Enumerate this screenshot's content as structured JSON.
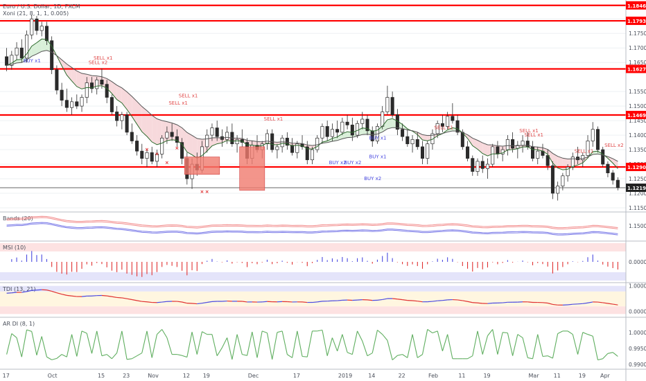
{
  "header": {
    "symbol_title": "Euro / U.S. Dollar, 1D, FXCM",
    "indicator_title": "Xoni (21, 8, 1, 1, 0.005)"
  },
  "colors": {
    "level_line": "#ff0000",
    "up_candle": "#ffffff",
    "down_candle": "#2b2b2b",
    "ema_fast": "#2e6b2e",
    "ema_slow": "#555555",
    "cloud_bull": "#d9efd9",
    "cloud_bear": "#f7d9dc",
    "buy_text": "#4a4ae0",
    "sell_text": "#e04a4a",
    "x_mark": "#e03030",
    "box_fill": "#f07a6e",
    "band_red": "#f28b8b",
    "band_blue": "#7b7be8",
    "hist_pos": "#4a4ae0",
    "hist_neg": "#e03030",
    "tdi_fill_top": "#e4e4fa",
    "tdi_fill_mid": "#fff6e0",
    "tdi_fill_bot": "#fde2e2",
    "ardi_green": "#5fae5f",
    "ardi_red": "#e03030",
    "ardi_blue": "#4a4ae0"
  },
  "chart_data": [
    {
      "type": "candlestick",
      "panel": "price",
      "title": "Euro / U.S. Dollar, 1D, FXCM",
      "ylim": [
        1.1138,
        1.1865
      ],
      "yticks": [
        "1.18000",
        "1.17500",
        "1.17000",
        "1.16500",
        "1.15500",
        "1.15000",
        "1.14500",
        "1.14000",
        "1.13500",
        "1.13000",
        "1.12500",
        "1.12000",
        "1.11500"
      ],
      "xticks": [
        {
          "label": "17",
          "index": 0
        },
        {
          "label": "Oct",
          "index": 10
        },
        {
          "label": "15",
          "index": 20
        },
        {
          "label": "23",
          "index": 26
        },
        {
          "label": "Nov",
          "index": 31
        },
        {
          "label": "12",
          "index": 38
        },
        {
          "label": "19",
          "index": 43
        },
        {
          "label": "Dec",
          "index": 52
        },
        {
          "label": "17",
          "index": 62
        },
        {
          "label": "2019",
          "index": 71
        },
        {
          "label": "14",
          "index": 78
        },
        {
          "label": "22",
          "index": 84
        },
        {
          "label": "Feb",
          "index": 90
        },
        {
          "label": "11",
          "index": 97
        },
        {
          "label": "19",
          "index": 102
        },
        {
          "label": "Mar",
          "index": 112
        },
        {
          "label": "11",
          "index": 117
        },
        {
          "label": "19",
          "index": 122
        },
        {
          "label": "Apr",
          "index": 130
        }
      ],
      "levels": [
        {
          "value": 1.18465,
          "label": "1.18465"
        },
        {
          "value": 1.17934,
          "label": "1.17934"
        },
        {
          "value": 1.16279,
          "label": "1.16279"
        },
        {
          "value": 1.14693,
          "label": "1.14693"
        },
        {
          "value": 1.12906,
          "label": "1.12906"
        }
      ],
      "last_price": {
        "value": 1.12191,
        "label": "1.12191"
      },
      "candles": [
        [
          1.167,
          1.17,
          1.162,
          1.164
        ],
        [
          1.164,
          1.169,
          1.1625,
          1.1675
        ],
        [
          1.1675,
          1.172,
          1.166,
          1.17
        ],
        [
          1.17,
          1.173,
          1.165,
          1.1665
        ],
        [
          1.1665,
          1.176,
          1.165,
          1.1745
        ],
        [
          1.1745,
          1.1815,
          1.173,
          1.18
        ],
        [
          1.18,
          1.181,
          1.1745,
          1.176
        ],
        [
          1.176,
          1.179,
          1.174,
          1.1775
        ],
        [
          1.1775,
          1.179,
          1.171,
          1.1725
        ],
        [
          1.1725,
          1.174,
          1.161,
          1.1625
        ],
        [
          1.1625,
          1.164,
          1.154,
          1.1555
        ],
        [
          1.1555,
          1.158,
          1.15,
          1.152
        ],
        [
          1.152,
          1.156,
          1.148,
          1.1495
        ],
        [
          1.1495,
          1.153,
          1.147,
          1.1515
        ],
        [
          1.1515,
          1.154,
          1.149,
          1.15
        ],
        [
          1.15,
          1.154,
          1.148,
          1.153
        ],
        [
          1.153,
          1.16,
          1.151,
          1.158
        ],
        [
          1.158,
          1.16,
          1.1545,
          1.156
        ],
        [
          1.156,
          1.16,
          1.154,
          1.159
        ],
        [
          1.159,
          1.163,
          1.156,
          1.1575
        ],
        [
          1.1575,
          1.159,
          1.151,
          1.153
        ],
        [
          1.153,
          1.154,
          1.147,
          1.148
        ],
        [
          1.148,
          1.15,
          1.143,
          1.145
        ],
        [
          1.145,
          1.148,
          1.142,
          1.147
        ],
        [
          1.147,
          1.148,
          1.14,
          1.141
        ],
        [
          1.141,
          1.144,
          1.137,
          1.138
        ],
        [
          1.138,
          1.14,
          1.133,
          1.1345
        ],
        [
          1.1345,
          1.137,
          1.13,
          1.132
        ],
        [
          1.132,
          1.135,
          1.129,
          1.134
        ],
        [
          1.134,
          1.136,
          1.13,
          1.131
        ],
        [
          1.131,
          1.135,
          1.129,
          1.1335
        ],
        [
          1.1335,
          1.14,
          1.132,
          1.139
        ],
        [
          1.139,
          1.143,
          1.137,
          1.141
        ],
        [
          1.141,
          1.144,
          1.138,
          1.1395
        ],
        [
          1.1395,
          1.142,
          1.136,
          1.1375
        ],
        [
          1.1375,
          1.139,
          1.13,
          1.132
        ],
        [
          1.132,
          1.134,
          1.123,
          1.125
        ],
        [
          1.125,
          1.132,
          1.1215,
          1.13
        ],
        [
          1.13,
          1.134,
          1.126,
          1.128
        ],
        [
          1.128,
          1.138,
          1.127,
          1.136
        ],
        [
          1.136,
          1.142,
          1.134,
          1.14
        ],
        [
          1.14,
          1.144,
          1.138,
          1.1425
        ],
        [
          1.1425,
          1.145,
          1.138,
          1.1395
        ],
        [
          1.1395,
          1.142,
          1.136,
          1.1385
        ],
        [
          1.1385,
          1.143,
          1.137,
          1.141
        ],
        [
          1.141,
          1.144,
          1.136,
          1.137
        ],
        [
          1.137,
          1.14,
          1.134,
          1.1385
        ],
        [
          1.1385,
          1.142,
          1.136,
          1.1375
        ],
        [
          1.1375,
          1.139,
          1.13,
          1.132
        ],
        [
          1.132,
          1.138,
          1.13,
          1.1365
        ],
        [
          1.1365,
          1.14,
          1.134,
          1.135
        ],
        [
          1.135,
          1.138,
          1.132,
          1.137
        ],
        [
          1.137,
          1.142,
          1.135,
          1.1405
        ],
        [
          1.1405,
          1.142,
          1.134,
          1.135
        ],
        [
          1.135,
          1.137,
          1.132,
          1.136
        ],
        [
          1.136,
          1.14,
          1.134,
          1.139
        ],
        [
          1.139,
          1.141,
          1.135,
          1.1365
        ],
        [
          1.1365,
          1.139,
          1.133,
          1.134
        ],
        [
          1.134,
          1.138,
          1.132,
          1.137
        ],
        [
          1.137,
          1.14,
          1.135,
          1.136
        ],
        [
          1.136,
          1.138,
          1.13,
          1.1315
        ],
        [
          1.1315,
          1.136,
          1.13,
          1.135
        ],
        [
          1.135,
          1.14,
          1.134,
          1.139
        ],
        [
          1.139,
          1.144,
          1.137,
          1.143
        ],
        [
          1.143,
          1.145,
          1.138,
          1.1395
        ],
        [
          1.1395,
          1.144,
          1.138,
          1.142
        ],
        [
          1.142,
          1.145,
          1.139,
          1.141
        ],
        [
          1.141,
          1.146,
          1.14,
          1.1445
        ],
        [
          1.1445,
          1.147,
          1.142,
          1.1435
        ],
        [
          1.1435,
          1.146,
          1.138,
          1.14
        ],
        [
          1.14,
          1.145,
          1.139,
          1.144
        ],
        [
          1.144,
          1.148,
          1.142,
          1.1455
        ],
        [
          1.1455,
          1.147,
          1.14,
          1.1415
        ],
        [
          1.1415,
          1.143,
          1.136,
          1.138
        ],
        [
          1.138,
          1.144,
          1.137,
          1.143
        ],
        [
          1.143,
          1.15,
          1.142,
          1.148
        ],
        [
          1.148,
          1.157,
          1.147,
          1.153
        ],
        [
          1.153,
          1.155,
          1.146,
          1.147
        ],
        [
          1.147,
          1.149,
          1.14,
          1.142
        ],
        [
          1.142,
          1.144,
          1.138,
          1.1395
        ],
        [
          1.1395,
          1.142,
          1.136,
          1.137
        ],
        [
          1.137,
          1.14,
          1.134,
          1.1385
        ],
        [
          1.1385,
          1.141,
          1.135,
          1.136
        ],
        [
          1.136,
          1.138,
          1.13,
          1.132
        ],
        [
          1.132,
          1.138,
          1.13,
          1.137
        ],
        [
          1.137,
          1.142,
          1.135,
          1.1405
        ],
        [
          1.1405,
          1.145,
          1.139,
          1.144
        ],
        [
          1.144,
          1.147,
          1.141,
          1.143
        ],
        [
          1.143,
          1.148,
          1.142,
          1.1465
        ],
        [
          1.1465,
          1.151,
          1.144,
          1.145
        ],
        [
          1.145,
          1.147,
          1.14,
          1.141
        ],
        [
          1.141,
          1.142,
          1.135,
          1.136
        ],
        [
          1.136,
          1.138,
          1.131,
          1.132
        ],
        [
          1.132,
          1.133,
          1.126,
          1.1275
        ],
        [
          1.1275,
          1.132,
          1.126,
          1.131
        ],
        [
          1.131,
          1.133,
          1.127,
          1.1285
        ],
        [
          1.1285,
          1.132,
          1.125,
          1.13
        ],
        [
          1.13,
          1.137,
          1.129,
          1.136
        ],
        [
          1.136,
          1.138,
          1.132,
          1.1335
        ],
        [
          1.1335,
          1.136,
          1.131,
          1.135
        ],
        [
          1.135,
          1.14,
          1.133,
          1.1385
        ],
        [
          1.1385,
          1.141,
          1.134,
          1.1355
        ],
        [
          1.1355,
          1.138,
          1.132,
          1.1365
        ],
        [
          1.1365,
          1.14,
          1.134,
          1.138
        ],
        [
          1.138,
          1.141,
          1.135,
          1.136
        ],
        [
          1.136,
          1.138,
          1.131,
          1.132
        ],
        [
          1.132,
          1.136,
          1.13,
          1.1345
        ],
        [
          1.1345,
          1.137,
          1.132,
          1.133
        ],
        [
          1.133,
          1.135,
          1.128,
          1.1295
        ],
        [
          1.1295,
          1.131,
          1.118,
          1.12
        ],
        [
          1.12,
          1.124,
          1.1175,
          1.1225
        ],
        [
          1.1225,
          1.127,
          1.121,
          1.126
        ],
        [
          1.126,
          1.13,
          1.124,
          1.129
        ],
        [
          1.129,
          1.134,
          1.128,
          1.1325
        ],
        [
          1.1325,
          1.136,
          1.13,
          1.1315
        ],
        [
          1.1315,
          1.134,
          1.129,
          1.133
        ],
        [
          1.133,
          1.14,
          1.132,
          1.138
        ],
        [
          1.138,
          1.1445,
          1.136,
          1.142
        ],
        [
          1.142,
          1.143,
          1.134,
          1.135
        ],
        [
          1.135,
          1.136,
          1.129,
          1.13
        ],
        [
          1.13,
          1.131,
          1.1255,
          1.127
        ],
        [
          1.127,
          1.128,
          1.123,
          1.1245
        ],
        [
          1.1245,
          1.1255,
          1.121,
          1.1219
        ]
      ],
      "signals": [
        {
          "text": "BUY x1",
          "index": 6,
          "value": 1.165,
          "kind": "buy"
        },
        {
          "text": "SELL x1",
          "index": 24,
          "value": 1.166,
          "kind": "sell"
        },
        {
          "text": "SELL x2",
          "index": 22,
          "value": 1.1645,
          "kind": "sell"
        },
        {
          "text": "SELL x1",
          "index": 44,
          "value": 1.153,
          "kind": "sell"
        },
        {
          "text": "SELL x1",
          "index": 42,
          "value": 1.1505,
          "kind": "sell"
        },
        {
          "text": "SELL x1",
          "index": 66,
          "value": 1.145,
          "kind": "sell"
        },
        {
          "text": "BUY x2",
          "index": 81,
          "value": 1.13,
          "kind": "buy"
        },
        {
          "text": "BUY x2",
          "index": 85,
          "value": 1.13,
          "kind": "buy"
        },
        {
          "text": "BUY x1",
          "index": 91,
          "value": 1.132,
          "kind": "buy"
        },
        {
          "text": "BUY x2",
          "index": 90,
          "value": 1.1245,
          "kind": "buy"
        },
        {
          "text": "BUY x1",
          "index": 92,
          "value": 1.1385,
          "kind": "buy"
        },
        {
          "text": "SELL x1",
          "index": 107,
          "value": 1.142,
          "kind": "sell"
        },
        {
          "text": "SELL x1",
          "index": 128,
          "value": 1.141,
          "kind": "sell"
        },
        {
          "text": "SELL x1",
          "index": 130,
          "value": 1.1395,
          "kind": "sell"
        },
        {
          "text": "SELL x1",
          "index": 142,
          "value": 1.134,
          "kind": "sell"
        },
        {
          "text": "SELL x2",
          "index": 149,
          "value": 1.136,
          "kind": "sell"
        }
      ],
      "x_marks": [
        {
          "index": 35,
          "value": 1.1345
        },
        {
          "index": 37,
          "value": 1.133
        },
        {
          "index": 39,
          "value": 1.13
        },
        {
          "index": 42,
          "value": 1.135
        },
        {
          "index": 48,
          "value": 1.12
        },
        {
          "index": 50,
          "value": 1.12
        }
      ],
      "boxes": [
        {
          "i0": 36,
          "i1": 42,
          "hi": 1.1325,
          "lo": 1.1265
        },
        {
          "i0": 47,
          "i1": 51,
          "hi": 1.136,
          "lo": 1.121
        }
      ]
    },
    {
      "type": "line",
      "panel": "bands",
      "title": "Bands (20)",
      "ylim": [
        1.141,
        1.158
      ],
      "yticks": [
        "1.15000"
      ]
    },
    {
      "type": "bar",
      "panel": "osc",
      "title": "MSI (10)",
      "ylim": [
        -1,
        1
      ],
      "yticks": [
        "0.00000"
      ]
    },
    {
      "type": "line",
      "panel": "tdi",
      "title": "TDI (13, 21)",
      "ylim": [
        -0.2,
        1.1
      ],
      "yticks": [
        "1.00000",
        "0.00000"
      ]
    },
    {
      "type": "line",
      "panel": "ardi",
      "title": "AR DI (8, 1)",
      "ylim": [
        0.9885,
        1.0045
      ],
      "yticks": [
        "1.00000",
        "0.99500",
        "0.99000"
      ]
    }
  ]
}
